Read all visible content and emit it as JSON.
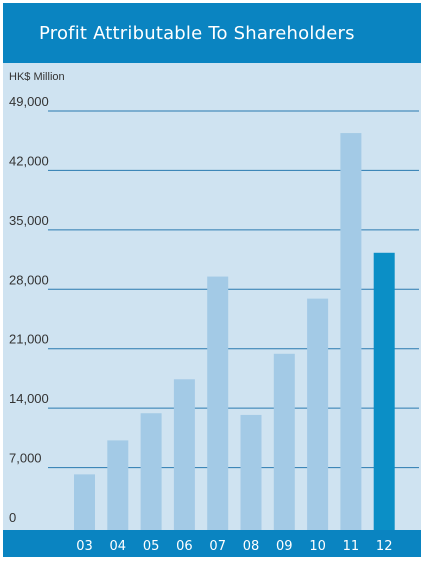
{
  "chart_data": {
    "type": "bar",
    "title": "Profit Attributable To Shareholders",
    "ylabel": "HK$ Million",
    "xlabel": "",
    "categories": [
      "03",
      "04",
      "05",
      "06",
      "07",
      "08",
      "09",
      "10",
      "11",
      "12"
    ],
    "values": [
      6200,
      10200,
      13400,
      17400,
      29500,
      13200,
      20400,
      26900,
      46400,
      32300
    ],
    "highlight_index": 9,
    "ylim": [
      0,
      49000
    ],
    "yticks": [
      "0",
      "7,000",
      "14,000",
      "21,000",
      "28,000",
      "35,000",
      "42,000",
      "49,000"
    ],
    "ytick_values": [
      0,
      7000,
      14000,
      21000,
      28000,
      35000,
      42000,
      49000
    ],
    "grid": true,
    "colors": {
      "bar": "#a3cae6",
      "bar_highlight": "#0b8fc6",
      "header": "#0a84c1",
      "background": "#cfe3f1",
      "gridline": "#2a7ab0"
    }
  }
}
